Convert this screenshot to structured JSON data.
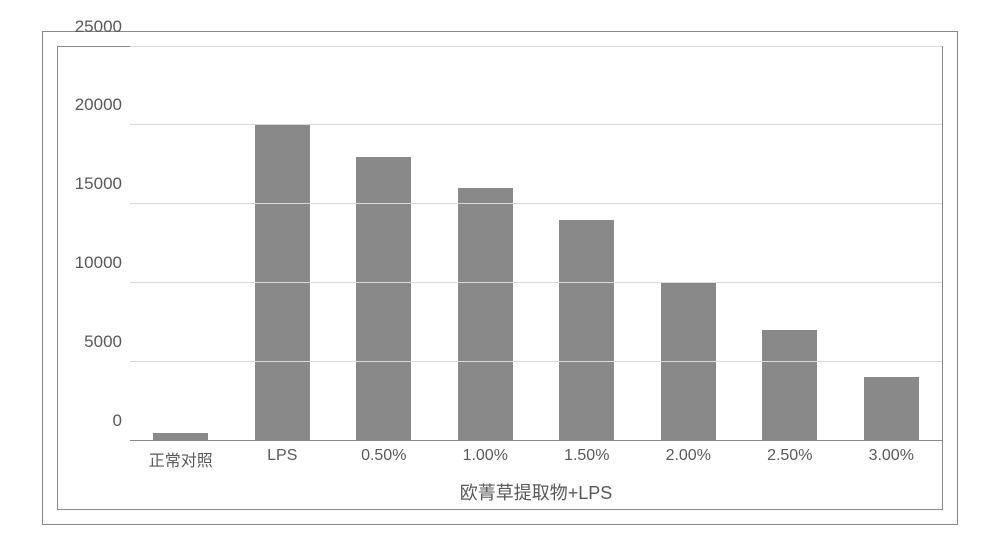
{
  "chart": {
    "type": "bar",
    "background_color": "#ffffff",
    "outer_border_color": "#898989",
    "inner_border_color": "#898989",
    "grid_color": "#d9d9d9",
    "baseline_color": "#898989",
    "tick_label_color": "#595959",
    "tick_label_fontsize": 17,
    "x_label_fontsize": 16,
    "x_title_fontsize": 18,
    "bar_color": "#898989",
    "bar_width": 0.54,
    "ylim": [
      0,
      25000
    ],
    "yticks": [
      0,
      5000,
      10000,
      15000,
      20000,
      25000
    ],
    "x_axis_title": "欧菁草提取物+LPS",
    "categories": [
      "正常对照",
      "LPS",
      "0.50%",
      "1.00%",
      "1.50%",
      "2.00%",
      "2.50%",
      "3.00%"
    ],
    "values": [
      500,
      20000,
      18000,
      16000,
      14000,
      10000,
      7000,
      4000
    ]
  }
}
